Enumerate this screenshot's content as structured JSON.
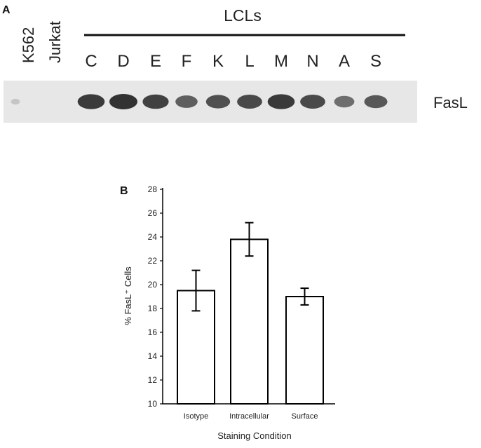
{
  "panel_a": {
    "panel_label": "A",
    "control_lanes": [
      "K562",
      "Jurkat"
    ],
    "group_label": "LCLs",
    "lcl_lanes": [
      "C",
      "D",
      "E",
      "F",
      "K",
      "L",
      "M",
      "N",
      "A",
      "S"
    ],
    "band_label": "FasL",
    "band_intensity": [
      0.02,
      0.0,
      0.95,
      1.0,
      0.9,
      0.7,
      0.8,
      0.85,
      0.95,
      0.85,
      0.6,
      0.75
    ]
  },
  "panel_b": {
    "panel_label": "B",
    "x_tick_labels": [
      "Isotype",
      "Intracellular",
      "Surface"
    ]
  },
  "chart_data": {
    "type": "bar",
    "categories": [
      "Isotype",
      "Intracellular",
      "Surface"
    ],
    "values": [
      19.5,
      23.8,
      19.0
    ],
    "error": [
      1.7,
      1.4,
      0.7
    ],
    "title": "",
    "xlabel": "Staining Condition",
    "ylabel": "% FasL⁺ Cells",
    "ylim": [
      10,
      28
    ],
    "yticks": [
      10,
      12,
      14,
      16,
      18,
      20,
      22,
      24,
      26,
      28
    ],
    "grid": false,
    "bar_fill": "#ffffff",
    "bar_stroke": "#000000"
  }
}
